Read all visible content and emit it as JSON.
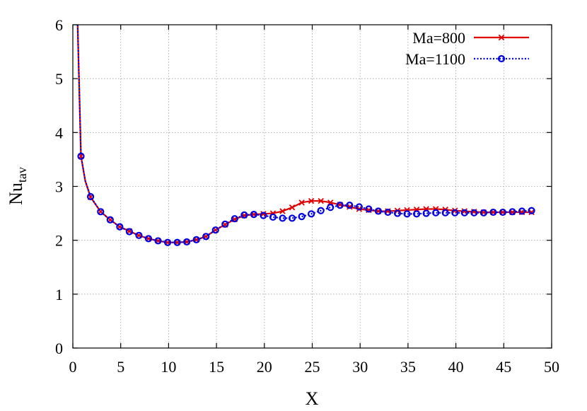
{
  "chart_data": {
    "type": "line",
    "xlabel": "X",
    "ylabel": "Nu",
    "ylabel_sub": "tav",
    "xlim": [
      0,
      50
    ],
    "ylim": [
      0,
      6
    ],
    "xticks": [
      0,
      5,
      10,
      15,
      20,
      25,
      30,
      35,
      40,
      45,
      50
    ],
    "yticks": [
      0,
      1,
      2,
      3,
      4,
      5,
      6
    ],
    "grid": true,
    "legend_position": "top-right",
    "series": [
      {
        "name": "Ma=800",
        "color": "#e00000",
        "line_style": "solid",
        "marker": "x",
        "curve": [
          [
            0.5,
            6.0
          ],
          [
            0.7,
            4.6
          ],
          [
            0.85,
            3.56
          ],
          [
            1.3,
            3.1
          ],
          [
            1.85,
            2.8
          ],
          [
            2.9,
            2.53
          ],
          [
            3.9,
            2.38
          ],
          [
            4.9,
            2.25
          ],
          [
            5.9,
            2.17
          ],
          [
            6.9,
            2.09
          ],
          [
            7.9,
            2.03
          ],
          [
            8.9,
            1.99
          ],
          [
            9.9,
            1.96
          ],
          [
            10.9,
            1.96
          ],
          [
            11.9,
            1.97
          ],
          [
            12.9,
            2.01
          ],
          [
            13.9,
            2.07
          ],
          [
            14.9,
            2.19
          ],
          [
            15.9,
            2.29
          ],
          [
            16.9,
            2.39
          ],
          [
            17.9,
            2.46
          ],
          [
            18.9,
            2.48
          ],
          [
            19.9,
            2.49
          ],
          [
            20.9,
            2.5
          ],
          [
            21.9,
            2.54
          ],
          [
            22.9,
            2.61
          ],
          [
            23.9,
            2.7
          ],
          [
            24.9,
            2.73
          ],
          [
            25.9,
            2.73
          ],
          [
            26.9,
            2.7
          ],
          [
            27.9,
            2.66
          ],
          [
            28.9,
            2.62
          ],
          [
            29.9,
            2.58
          ],
          [
            30.9,
            2.56
          ],
          [
            31.9,
            2.54
          ],
          [
            32.9,
            2.54
          ],
          [
            33.9,
            2.55
          ],
          [
            34.9,
            2.56
          ],
          [
            35.9,
            2.57
          ],
          [
            36.9,
            2.58
          ],
          [
            37.9,
            2.58
          ],
          [
            38.9,
            2.57
          ],
          [
            39.9,
            2.55
          ],
          [
            40.9,
            2.54
          ],
          [
            41.9,
            2.53
          ],
          [
            42.9,
            2.52
          ],
          [
            43.9,
            2.52
          ],
          [
            44.9,
            2.52
          ],
          [
            45.9,
            2.52
          ],
          [
            46.9,
            2.52
          ],
          [
            47.9,
            2.52
          ]
        ],
        "markers": [
          [
            0.85,
            3.56
          ],
          [
            1.85,
            2.8
          ],
          [
            2.9,
            2.53
          ],
          [
            3.9,
            2.38
          ],
          [
            4.9,
            2.25
          ],
          [
            5.9,
            2.17
          ],
          [
            6.9,
            2.09
          ],
          [
            7.9,
            2.03
          ],
          [
            8.9,
            1.99
          ],
          [
            9.9,
            1.96
          ],
          [
            10.9,
            1.96
          ],
          [
            11.9,
            1.97
          ],
          [
            12.9,
            2.01
          ],
          [
            13.9,
            2.07
          ],
          [
            14.9,
            2.19
          ],
          [
            15.9,
            2.29
          ],
          [
            16.9,
            2.39
          ],
          [
            17.9,
            2.46
          ],
          [
            18.9,
            2.48
          ],
          [
            19.9,
            2.49
          ],
          [
            20.9,
            2.5
          ],
          [
            21.9,
            2.54
          ],
          [
            22.9,
            2.61
          ],
          [
            23.9,
            2.7
          ],
          [
            24.9,
            2.73
          ],
          [
            25.9,
            2.73
          ],
          [
            26.9,
            2.7
          ],
          [
            27.9,
            2.66
          ],
          [
            28.9,
            2.62
          ],
          [
            29.9,
            2.58
          ],
          [
            30.9,
            2.56
          ],
          [
            31.9,
            2.54
          ],
          [
            32.9,
            2.54
          ],
          [
            33.9,
            2.55
          ],
          [
            34.9,
            2.56
          ],
          [
            35.9,
            2.57
          ],
          [
            36.9,
            2.58
          ],
          [
            37.9,
            2.58
          ],
          [
            38.9,
            2.57
          ],
          [
            39.9,
            2.55
          ],
          [
            40.9,
            2.54
          ],
          [
            41.9,
            2.53
          ],
          [
            42.9,
            2.52
          ],
          [
            43.9,
            2.52
          ],
          [
            44.9,
            2.52
          ],
          [
            45.9,
            2.52
          ],
          [
            46.9,
            2.52
          ],
          [
            47.9,
            2.52
          ]
        ]
      },
      {
        "name": "Ma=1100",
        "color": "#0000e0",
        "line_style": "dotted",
        "marker": "circle",
        "curve": [
          [
            0.5,
            6.0
          ],
          [
            0.7,
            4.6
          ],
          [
            0.85,
            3.56
          ],
          [
            1.3,
            3.1
          ],
          [
            1.85,
            2.81
          ],
          [
            2.9,
            2.53
          ],
          [
            3.9,
            2.38
          ],
          [
            4.9,
            2.25
          ],
          [
            5.9,
            2.16
          ],
          [
            6.9,
            2.09
          ],
          [
            7.9,
            2.03
          ],
          [
            8.9,
            1.99
          ],
          [
            9.9,
            1.96
          ],
          [
            10.9,
            1.96
          ],
          [
            11.9,
            1.97
          ],
          [
            12.9,
            2.01
          ],
          [
            13.9,
            2.07
          ],
          [
            14.9,
            2.19
          ],
          [
            15.9,
            2.3
          ],
          [
            16.9,
            2.4
          ],
          [
            17.9,
            2.47
          ],
          [
            18.9,
            2.48
          ],
          [
            19.9,
            2.46
          ],
          [
            20.9,
            2.43
          ],
          [
            21.9,
            2.41
          ],
          [
            22.9,
            2.41
          ],
          [
            23.9,
            2.44
          ],
          [
            24.9,
            2.49
          ],
          [
            25.9,
            2.55
          ],
          [
            26.9,
            2.61
          ],
          [
            27.9,
            2.65
          ],
          [
            28.9,
            2.65
          ],
          [
            29.9,
            2.62
          ],
          [
            30.9,
            2.58
          ],
          [
            31.9,
            2.54
          ],
          [
            32.9,
            2.52
          ],
          [
            33.9,
            2.5
          ],
          [
            34.9,
            2.49
          ],
          [
            35.9,
            2.49
          ],
          [
            36.9,
            2.5
          ],
          [
            37.9,
            2.51
          ],
          [
            38.9,
            2.51
          ],
          [
            39.9,
            2.51
          ],
          [
            40.9,
            2.51
          ],
          [
            41.9,
            2.51
          ],
          [
            42.9,
            2.51
          ],
          [
            43.9,
            2.52
          ],
          [
            44.9,
            2.52
          ],
          [
            45.9,
            2.53
          ],
          [
            46.9,
            2.54
          ],
          [
            47.9,
            2.55
          ]
        ],
        "markers": [
          [
            0.85,
            3.56
          ],
          [
            1.85,
            2.81
          ],
          [
            2.9,
            2.53
          ],
          [
            3.9,
            2.38
          ],
          [
            4.9,
            2.25
          ],
          [
            5.9,
            2.16
          ],
          [
            6.9,
            2.09
          ],
          [
            7.9,
            2.03
          ],
          [
            8.9,
            1.99
          ],
          [
            9.9,
            1.96
          ],
          [
            10.9,
            1.96
          ],
          [
            11.9,
            1.97
          ],
          [
            12.9,
            2.01
          ],
          [
            13.9,
            2.07
          ],
          [
            14.9,
            2.19
          ],
          [
            15.9,
            2.3
          ],
          [
            16.9,
            2.4
          ],
          [
            17.9,
            2.47
          ],
          [
            18.9,
            2.48
          ],
          [
            19.9,
            2.46
          ],
          [
            20.9,
            2.43
          ],
          [
            21.9,
            2.41
          ],
          [
            22.9,
            2.41
          ],
          [
            23.9,
            2.44
          ],
          [
            24.9,
            2.49
          ],
          [
            25.9,
            2.55
          ],
          [
            26.9,
            2.61
          ],
          [
            27.9,
            2.65
          ],
          [
            28.9,
            2.65
          ],
          [
            29.9,
            2.62
          ],
          [
            30.9,
            2.58
          ],
          [
            31.9,
            2.54
          ],
          [
            32.9,
            2.52
          ],
          [
            33.9,
            2.5
          ],
          [
            34.9,
            2.49
          ],
          [
            35.9,
            2.49
          ],
          [
            36.9,
            2.5
          ],
          [
            37.9,
            2.51
          ],
          [
            38.9,
            2.51
          ],
          [
            39.9,
            2.51
          ],
          [
            40.9,
            2.51
          ],
          [
            41.9,
            2.51
          ],
          [
            42.9,
            2.51
          ],
          [
            43.9,
            2.52
          ],
          [
            44.9,
            2.52
          ],
          [
            45.9,
            2.53
          ],
          [
            46.9,
            2.54
          ],
          [
            47.9,
            2.55
          ]
        ]
      }
    ]
  }
}
